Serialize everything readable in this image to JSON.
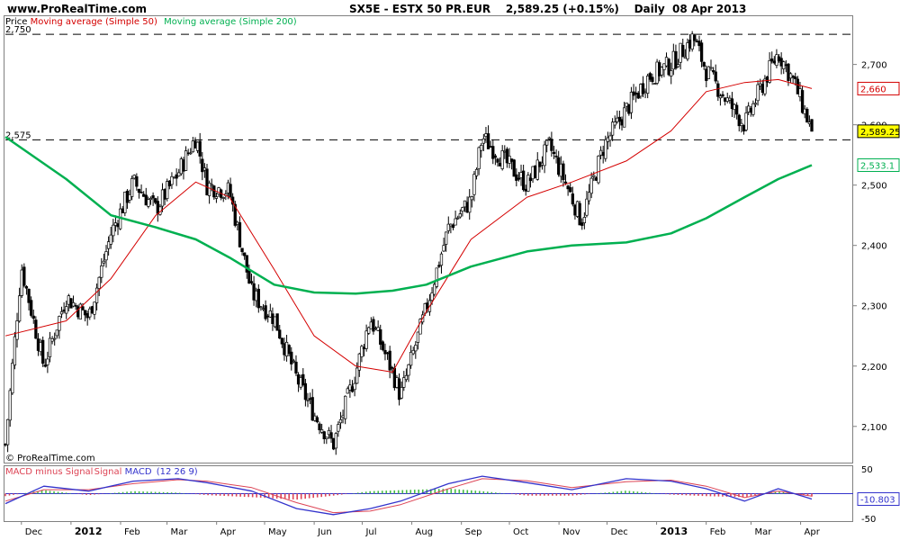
{
  "header": {
    "site": "www.ProRealTime.com",
    "instrument": "SX5E - ESTX 50 PR.EUR",
    "last_price": "2,589.25 (+0.15%)",
    "period": "Daily  08 Apr 2013"
  },
  "legend": {
    "price": "Price",
    "ma50": "Moving average (Simple 50)",
    "ma200": "Moving average (Simple 200)",
    "ma50_color": "#d40000",
    "ma200_color": "#00b050"
  },
  "watermark": "© ProRealTime.com",
  "macd_legend": {
    "macd_minus_signal": "MACD minus Signal",
    "signal": "Signal",
    "macd": "MACD",
    "params": "(12 26 9)",
    "macd_color": "#3333cc",
    "hist_pos_color": "#44bb44",
    "hist_neg_color": "#dd4455"
  },
  "chart_data": [
    {
      "type": "line",
      "subtype": "candlestick",
      "title": "SX5E - ESTX 50 PR.EUR",
      "ylim": [
        2040,
        2780
      ],
      "yticks": [
        "2,100",
        "2,200",
        "2,300",
        "2,400",
        "2,500",
        "2,600",
        "2,700"
      ],
      "x_axis_labels": [
        "Dec",
        "2012",
        "Feb",
        "Mar",
        "Apr",
        "May",
        "Jun",
        "Jul",
        "Aug",
        "Sep",
        "Oct",
        "Nov",
        "Dec",
        "2013",
        "Feb",
        "Mar",
        "Apr"
      ],
      "reference_lines": [
        {
          "label": "2,750",
          "value": 2750
        },
        {
          "label": "2,575",
          "value": 2575
        }
      ],
      "price_markers": [
        {
          "label": "2,660",
          "value": 2660,
          "series": "Moving average (Simple 50)"
        },
        {
          "label": "2,589.25",
          "value": 2589.25,
          "series": "Price"
        },
        {
          "label": "2,533.1",
          "value": 2533.1,
          "series": "Moving average (Simple 200)"
        }
      ],
      "series": [
        {
          "name": "Price",
          "x": [
            "2011-11-21",
            "2011-12-01",
            "2011-12-15",
            "2011-12-29",
            "2012-01-12",
            "2012-01-26",
            "2012-02-09",
            "2012-02-23",
            "2012-03-08",
            "2012-03-19",
            "2012-03-26",
            "2012-04-09",
            "2012-04-23",
            "2012-05-07",
            "2012-05-21",
            "2012-06-01",
            "2012-06-13",
            "2012-06-27",
            "2012-07-06",
            "2012-07-20",
            "2012-07-25",
            "2012-08-10",
            "2012-08-24",
            "2012-09-07",
            "2012-09-14",
            "2012-09-28",
            "2012-10-12",
            "2012-10-26",
            "2012-11-09",
            "2012-11-15",
            "2012-11-29",
            "2012-12-13",
            "2012-12-27",
            "2013-01-10",
            "2013-01-24",
            "2013-02-01",
            "2013-02-14",
            "2013-02-25",
            "2013-03-07",
            "2013-03-18",
            "2013-03-28",
            "2013-04-08"
          ],
          "values": [
            2070,
            2365,
            2200,
            2315,
            2280,
            2420,
            2505,
            2460,
            2520,
            2580,
            2500,
            2490,
            2320,
            2280,
            2180,
            2120,
            2070,
            2190,
            2280,
            2190,
            2150,
            2295,
            2430,
            2475,
            2580,
            2540,
            2500,
            2565,
            2480,
            2440,
            2565,
            2625,
            2680,
            2700,
            2745,
            2690,
            2640,
            2600,
            2660,
            2720,
            2670,
            2589.25
          ]
        },
        {
          "name": "Moving average (Simple 50)",
          "x": [
            "2011-11-21",
            "2011-12-29",
            "2012-01-26",
            "2012-02-23",
            "2012-03-19",
            "2012-04-09",
            "2012-05-07",
            "2012-06-01",
            "2012-06-27",
            "2012-07-20",
            "2012-08-10",
            "2012-09-07",
            "2012-10-12",
            "2012-11-09",
            "2012-12-13",
            "2013-01-10",
            "2013-02-01",
            "2013-02-25",
            "2013-03-18",
            "2013-04-08"
          ],
          "values": [
            2250,
            2275,
            2345,
            2450,
            2505,
            2480,
            2360,
            2250,
            2200,
            2190,
            2290,
            2410,
            2480,
            2505,
            2540,
            2590,
            2655,
            2670,
            2675,
            2660
          ]
        },
        {
          "name": "Moving average (Simple 200)",
          "x": [
            "2011-11-21",
            "2011-12-29",
            "2012-01-26",
            "2012-02-23",
            "2012-03-19",
            "2012-04-09",
            "2012-05-07",
            "2012-06-01",
            "2012-06-27",
            "2012-07-20",
            "2012-08-10",
            "2012-09-07",
            "2012-10-12",
            "2012-11-09",
            "2012-12-13",
            "2013-01-10",
            "2013-02-01",
            "2013-02-25",
            "2013-03-18",
            "2013-04-08"
          ],
          "values": [
            2580,
            2510,
            2450,
            2430,
            2410,
            2380,
            2335,
            2322,
            2320,
            2325,
            2335,
            2365,
            2390,
            2400,
            2405,
            2420,
            2445,
            2480,
            2510,
            2533.1
          ]
        }
      ]
    },
    {
      "type": "bar",
      "subtype": "macd",
      "title": "MACD (12 26 9)",
      "ylim": [
        -55,
        55
      ],
      "yticks": [
        "50",
        "-50"
      ],
      "last_value_label": "-10.803",
      "series": [
        {
          "name": "MACD",
          "x": [
            "2011-11-21",
            "2011-12-15",
            "2012-01-12",
            "2012-02-09",
            "2012-03-08",
            "2012-03-26",
            "2012-04-23",
            "2012-05-21",
            "2012-06-13",
            "2012-07-06",
            "2012-07-25",
            "2012-08-24",
            "2012-09-14",
            "2012-10-12",
            "2012-11-09",
            "2012-12-13",
            "2013-01-10",
            "2013-02-01",
            "2013-02-25",
            "2013-03-18",
            "2013-04-08"
          ],
          "values": [
            -20,
            15,
            5,
            25,
            30,
            22,
            5,
            -30,
            -42,
            -30,
            -15,
            20,
            35,
            22,
            8,
            30,
            25,
            10,
            -15,
            10,
            -10.803
          ]
        },
        {
          "name": "Signal",
          "x": [
            "2011-11-21",
            "2011-12-15",
            "2012-01-12",
            "2012-02-09",
            "2012-03-08",
            "2012-03-26",
            "2012-04-23",
            "2012-05-21",
            "2012-06-13",
            "2012-07-06",
            "2012-07-25",
            "2012-08-24",
            "2012-09-14",
            "2012-10-12",
            "2012-11-09",
            "2012-12-13",
            "2013-01-10",
            "2013-02-01",
            "2013-02-25",
            "2013-03-18",
            "2013-04-08"
          ],
          "values": [
            -15,
            8,
            8,
            20,
            28,
            25,
            12,
            -18,
            -38,
            -35,
            -22,
            10,
            30,
            26,
            12,
            24,
            27,
            15,
            -8,
            5,
            -5
          ]
        }
      ]
    }
  ]
}
